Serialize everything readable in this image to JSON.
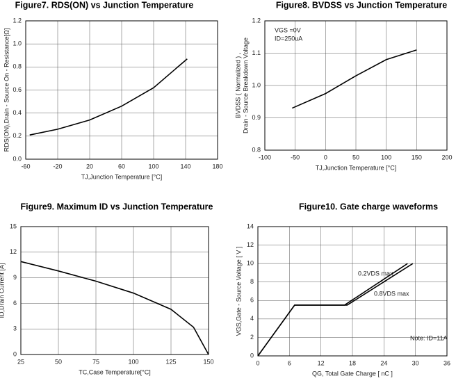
{
  "chart_data": [
    {
      "type": "line",
      "title": "Figure7. RDS(ON) vs Junction Temperature",
      "xlabel": "TJ,Junction Temperature [°C]",
      "ylabel": [
        "RDS(ON),Drain - Source On - Resistance[Ω]"
      ],
      "xlim": [
        -60,
        180
      ],
      "xticks": [
        -60,
        -20,
        20,
        60,
        100,
        140,
        180
      ],
      "ylim": [
        0,
        1.2
      ],
      "yticks": [
        {
          "value": 0,
          "label": "0.0"
        },
        0.2,
        0.4,
        0.6,
        0.8,
        {
          "value": 1,
          "label": "1.0"
        },
        1.2
      ],
      "grid": true,
      "series": [
        {
          "color": "#000000",
          "x": [
            -55,
            -20,
            20,
            60,
            100,
            142
          ],
          "values": [
            0.21,
            0.26,
            0.34,
            0.46,
            0.62,
            0.87
          ]
        }
      ]
    },
    {
      "type": "line",
      "title": "Figure8. BVDSS vs Junction Temperature",
      "xlabel": "TJ,Junction Temperature [°C]",
      "ylabel": [
        "BVDSS ( Normalized ) ,",
        "Drain - Source Breakdown Voltage"
      ],
      "xlim": [
        -100,
        200
      ],
      "xticks": [
        -100,
        -50,
        0,
        50,
        100,
        150,
        200
      ],
      "ylim": [
        0.8,
        1.2
      ],
      "yticks": [
        0.8,
        0.9,
        {
          "value": 1,
          "label": "1.0"
        },
        1.1,
        1.2
      ],
      "grid": true,
      "annotations": [
        "VGS =0V",
        "ID=250uA"
      ],
      "series": [
        {
          "color": "#000000",
          "x": [
            -55,
            0,
            50,
            100,
            150
          ],
          "values": [
            0.93,
            0.975,
            1.03,
            1.08,
            1.11
          ]
        }
      ]
    },
    {
      "type": "line",
      "title": "Figure9. Maximum ID vs Junction Temperature",
      "xlabel": "TC,Case Temperature[°C]",
      "ylabel": [
        "ID,Drain Current [A]"
      ],
      "xlim": [
        25,
        150
      ],
      "xticks": [
        25,
        50,
        75,
        100,
        125,
        150
      ],
      "ylim": [
        0,
        15
      ],
      "yticks": [
        0,
        3,
        6,
        9,
        12,
        15
      ],
      "grid": true,
      "series": [
        {
          "color": "#000000",
          "x": [
            25,
            50,
            75,
            100,
            125,
            140,
            150
          ],
          "values": [
            10.9,
            9.8,
            8.6,
            7.2,
            5.3,
            3.2,
            0
          ]
        }
      ]
    },
    {
      "type": "line",
      "title": "Figure10. Gate charge waveforms",
      "xlabel": "QG, Total Gate Charge [ nC ]",
      "ylabel": [
        "VGS,Gate - Source Voltage [ V ]"
      ],
      "xlim": [
        0,
        36
      ],
      "xticks": [
        0,
        6,
        12,
        18,
        24,
        30,
        36
      ],
      "ylim": [
        0,
        14
      ],
      "yticks": [
        0,
        2,
        4,
        6,
        8,
        10,
        12,
        14
      ],
      "grid": true,
      "annotations": [
        "Note: ID=11A"
      ],
      "series": [
        {
          "name": "0.2VDS max",
          "color": "#000000",
          "x": [
            0,
            7,
            16.5,
            28.5
          ],
          "values": [
            0,
            5.5,
            5.5,
            10
          ]
        },
        {
          "name": "0.8VDS max",
          "color": "#000000",
          "x": [
            0,
            7,
            17,
            29.5
          ],
          "values": [
            0,
            5.5,
            5.5,
            10
          ]
        }
      ]
    }
  ]
}
